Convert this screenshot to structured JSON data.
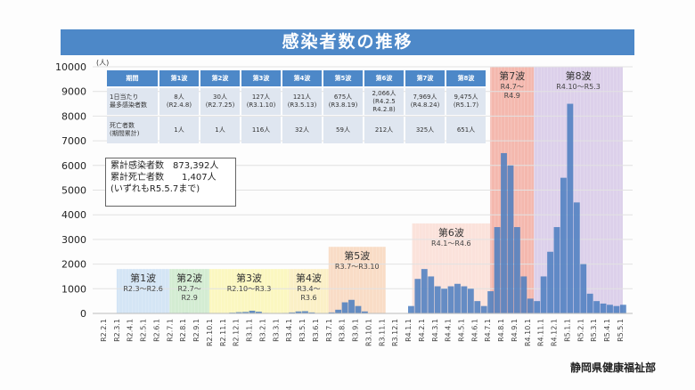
{
  "title": "感染者数の推移",
  "credit": "静岡県健康福祉部",
  "table": {
    "headers": [
      "期間",
      "第1波",
      "第2波",
      "第3波",
      "第4波",
      "第5波",
      "第6波",
      "第7波",
      "第8波"
    ],
    "row1_label": "1日当たり\n最多感染者数",
    "row1": [
      "8人\n(R2.4.8)",
      "30人\n(R2.7.25)",
      "127人\n(R3.1.10)",
      "121人\n(R3.5.13)",
      "675人\n(R3.8.19)",
      "2,066人\n(R4.2.5\nR4.2.8)",
      "7,969人\n(R4.8.24)",
      "9,475人\n(R5.1.7)"
    ],
    "row2_label": "死亡者数\n(期間累計)",
    "row2": [
      "1人",
      "1人",
      "116人",
      "32人",
      "59人",
      "212人",
      "325人",
      "651人"
    ]
  },
  "summary": {
    "line1": "累計感染者数　873,392人",
    "line2": "累計死亡者数　　1,407人",
    "line3": "(いずれもR5.5.7まで)"
  },
  "chart_data": {
    "type": "bar",
    "title": "感染者数の推移",
    "ylabel": "(人)",
    "ylim": [
      0,
      10000
    ],
    "yticks": [
      0,
      1000,
      2000,
      3000,
      4000,
      5000,
      6000,
      7000,
      8000,
      9000,
      10000
    ],
    "xticks": [
      "R2.2.1",
      "R2.3.1",
      "R2.4.1",
      "R2.5.1",
      "R2.6.1",
      "R2.7.1",
      "R2.8.1",
      "R2.9.1",
      "R2.10.1",
      "R2.11.1",
      "R2.12.1",
      "R3.1.1",
      "R3.2.1",
      "R3.3.1",
      "R3.4.1",
      "R3.5.1",
      "R3.6.1",
      "R3.7.1",
      "R3.8.1",
      "R3.9.1",
      "R3.10.1",
      "R3.11.1",
      "R3.12.1",
      "R4.1.1",
      "R4.2.1",
      "R4.3.1",
      "R4.4.1",
      "R4.5.1",
      "R4.6.1",
      "R4.7.1",
      "R4.8.1",
      "R4.9.1",
      "R4.10.1",
      "R4.11.1",
      "R4.12.1",
      "R5.1.1",
      "R5.2.1",
      "R5.3.1",
      "R5.4.1",
      "R5.5.1"
    ],
    "resolution": "half-month (approx. daily peak)",
    "values": [
      0,
      0,
      0,
      0,
      5,
      3,
      0,
      0,
      0,
      0,
      5,
      15,
      20,
      10,
      3,
      2,
      3,
      5,
      10,
      30,
      50,
      60,
      110,
      70,
      20,
      10,
      15,
      20,
      40,
      80,
      90,
      40,
      15,
      10,
      40,
      150,
      450,
      550,
      300,
      80,
      10,
      5,
      2,
      2,
      2,
      5,
      300,
      1400,
      1800,
      1500,
      1100,
      1000,
      1100,
      1200,
      1100,
      1000,
      500,
      300,
      900,
      3500,
      6500,
      6000,
      3500,
      1500,
      600,
      500,
      1500,
      2500,
      3500,
      5500,
      8500,
      4500,
      2000,
      800,
      500,
      400,
      350,
      300,
      350
    ],
    "waves": [
      {
        "name": "第1波",
        "period": "R2.3〜R2.6",
        "start": 1,
        "end": 5,
        "top": 1800,
        "color": "#d4e5f5"
      },
      {
        "name": "第2波",
        "period": "R2.7〜\nR2.9",
        "start": 5,
        "end": 8,
        "top": 1800,
        "color": "#d3ecd2"
      },
      {
        "name": "第3波",
        "period": "R2.10〜R3.3",
        "start": 8,
        "end": 14,
        "top": 1800,
        "color": "#fbf7c0"
      },
      {
        "name": "第4波",
        "period": "R3.4〜\nR3.6",
        "start": 14,
        "end": 17,
        "top": 1800,
        "color": "#fbf0c6"
      },
      {
        "name": "第5波",
        "period": "R3.7〜R3.10",
        "start": 17,
        "end": 21.3,
        "top": 2700,
        "color": "#f9dcc6"
      },
      {
        "name": "第6波",
        "period": "R4.1〜R4.6",
        "start": 23.3,
        "end": 29.2,
        "top": 3650,
        "color": "#fbe2db"
      },
      {
        "name": "第7波",
        "period": "R4.7〜\nR4.9",
        "start": 29.2,
        "end": 32.5,
        "top": 10000,
        "color": "#f4b8ae"
      },
      {
        "name": "第8波",
        "period": "R4.10〜R5.3",
        "start": 32.5,
        "end": 39.2,
        "top": 10000,
        "color": "#dcd0ea"
      }
    ],
    "bar_color": "#4a7cc0",
    "grid": true
  }
}
